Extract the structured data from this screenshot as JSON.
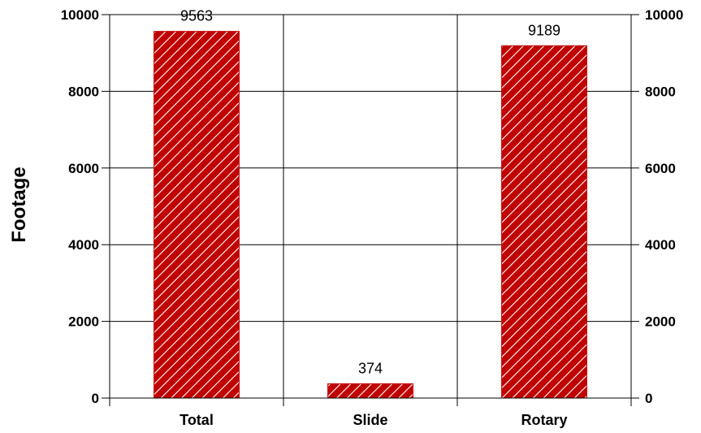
{
  "chart_data": {
    "type": "bar",
    "categories": [
      "Total",
      "Slide",
      "Rotary"
    ],
    "values": [
      9563,
      374,
      9189
    ],
    "data_labels": [
      "9563",
      "374",
      "9189"
    ],
    "title": "",
    "xlabel": "",
    "ylabel": "Footage",
    "ylim": [
      0,
      10000
    ],
    "yticks": [
      "0",
      "2000",
      "4000",
      "6000",
      "8000",
      "10000"
    ],
    "right_axis_ticks": [
      "0",
      "2000",
      "4000",
      "6000",
      "8000",
      "10000"
    ],
    "grid": true,
    "bar_fill": "hatched",
    "colors": {
      "bar": "#c00000",
      "hatch": "#ffffff",
      "grid": "#000000"
    }
  }
}
